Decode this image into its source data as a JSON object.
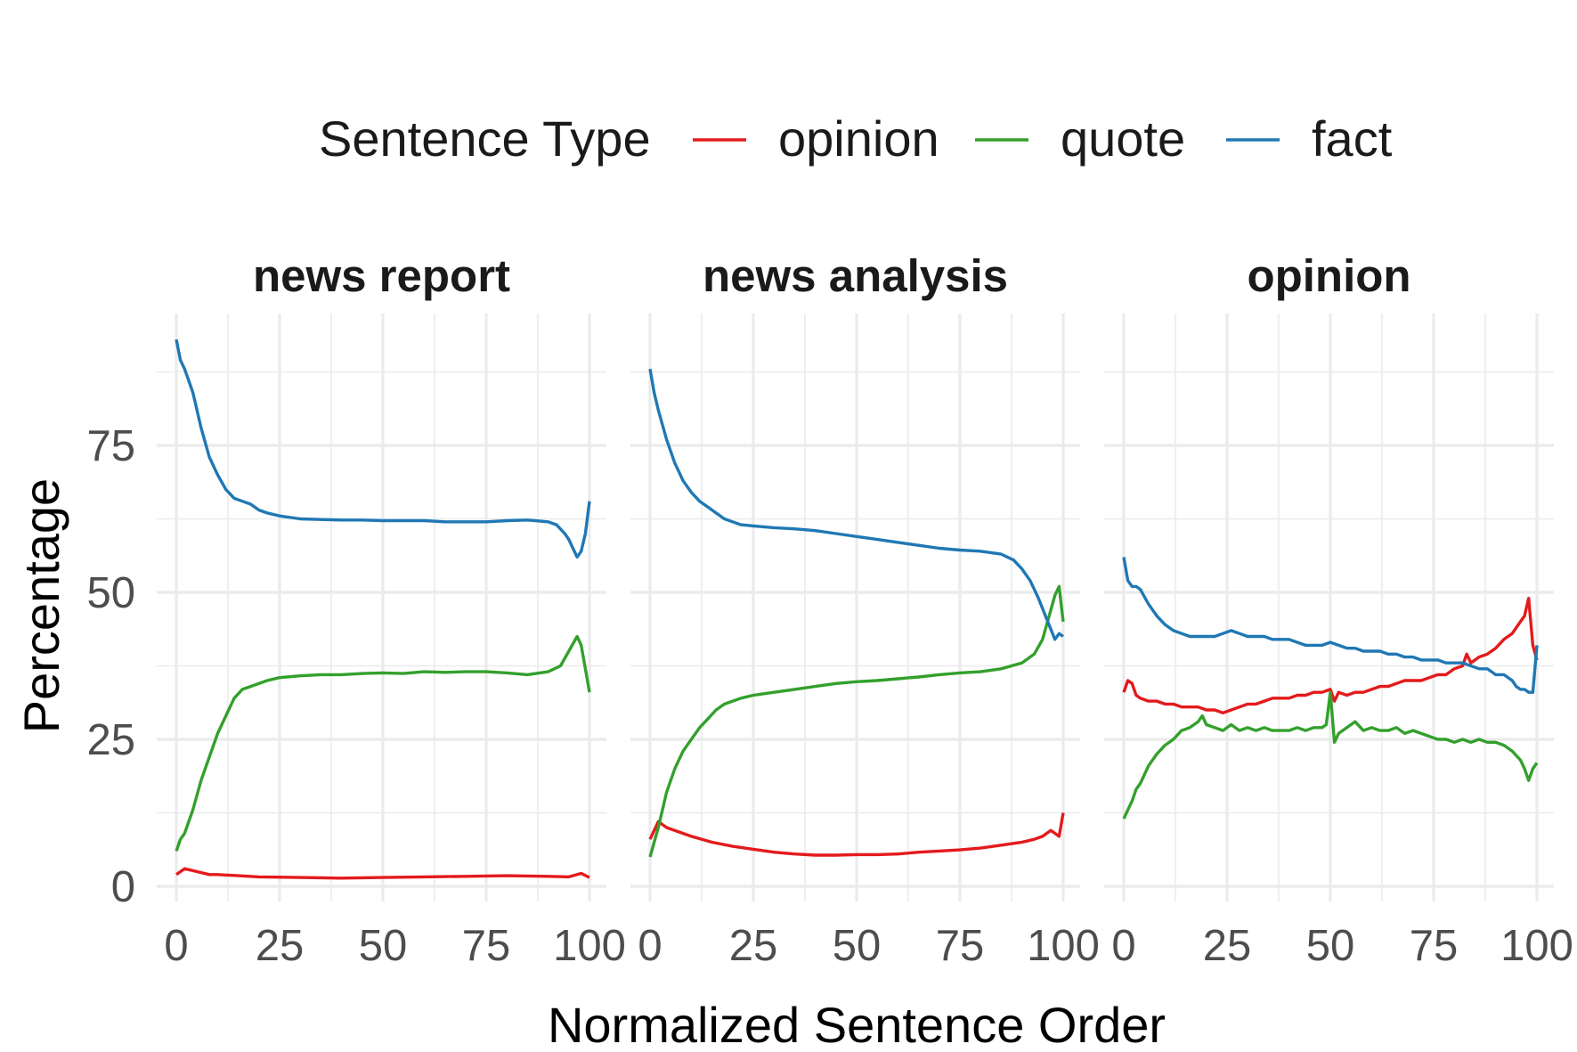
{
  "chart_data": {
    "type": "line",
    "facets": [
      "news report",
      "news analysis",
      "opinion"
    ],
    "xlabel": "Normalized Sentence Order",
    "ylabel": "Percentage",
    "xlim": [
      0,
      100
    ],
    "ylim": [
      0,
      95
    ],
    "x_ticks": [
      0,
      25,
      50,
      75,
      100
    ],
    "y_ticks": [
      0,
      25,
      50,
      75
    ],
    "grid": true,
    "legend": {
      "title": "Sentence Type",
      "position": "top",
      "entries": [
        {
          "name": "opinion",
          "color": "#E41A1C"
        },
        {
          "name": "quote",
          "color": "#33A02C"
        },
        {
          "name": "fact",
          "color": "#1F78B4"
        }
      ]
    },
    "panels": [
      {
        "facet": "news report",
        "series": [
          {
            "name": "opinion",
            "x": [
              0,
              2,
              5,
              8,
              10,
              15,
              20,
              30,
              40,
              50,
              60,
              70,
              80,
              90,
              95,
              98,
              100
            ],
            "y": [
              2,
              3,
              2.5,
              2,
              2,
              1.8,
              1.6,
              1.5,
              1.4,
              1.5,
              1.6,
              1.7,
              1.8,
              1.7,
              1.6,
              2.2,
              1.5
            ]
          },
          {
            "name": "quote",
            "x": [
              0,
              1,
              2,
              4,
              6,
              8,
              10,
              12,
              14,
              16,
              18,
              20,
              22,
              25,
              30,
              35,
              40,
              45,
              50,
              55,
              60,
              65,
              70,
              75,
              80,
              85,
              90,
              93,
              95,
              97,
              98,
              99,
              100
            ],
            "y": [
              6,
              8,
              9,
              13,
              18,
              22,
              26,
              29,
              32,
              33.5,
              34,
              34.5,
              35,
              35.5,
              35.8,
              36,
              36,
              36.2,
              36.3,
              36.2,
              36.5,
              36.4,
              36.5,
              36.5,
              36.3,
              36,
              36.5,
              37.5,
              40,
              42.5,
              41,
              37,
              33
            ]
          },
          {
            "name": "fact",
            "x": [
              0,
              1,
              2,
              4,
              6,
              8,
              10,
              12,
              14,
              16,
              18,
              20,
              22,
              25,
              30,
              35,
              40,
              45,
              50,
              55,
              60,
              65,
              70,
              75,
              80,
              85,
              90,
              92,
              94,
              95,
              96,
              97,
              98,
              99,
              100
            ],
            "y": [
              93,
              89.5,
              88,
              84,
              78,
              73,
              70,
              67.5,
              66,
              65.5,
              65,
              64,
              63.5,
              63,
              62.5,
              62.4,
              62.3,
              62.3,
              62.2,
              62.2,
              62.2,
              62,
              62,
              62,
              62.2,
              62.3,
              62,
              61.5,
              60,
              59,
              57.5,
              56,
              57,
              60,
              65.5
            ]
          }
        ]
      },
      {
        "facet": "news analysis",
        "series": [
          {
            "name": "opinion",
            "x": [
              0,
              2,
              4,
              6,
              10,
              15,
              20,
              25,
              30,
              35,
              40,
              45,
              50,
              55,
              60,
              65,
              70,
              75,
              80,
              85,
              90,
              93,
              95,
              97,
              99,
              100
            ],
            "y": [
              8,
              11,
              10,
              9.5,
              8.5,
              7.5,
              6.8,
              6.3,
              5.8,
              5.5,
              5.3,
              5.3,
              5.4,
              5.4,
              5.5,
              5.8,
              6,
              6.2,
              6.5,
              7,
              7.5,
              8,
              8.5,
              9.5,
              8.5,
              12.5
            ]
          },
          {
            "name": "quote",
            "x": [
              0,
              2,
              4,
              6,
              8,
              10,
              12,
              14,
              16,
              18,
              20,
              22,
              25,
              30,
              35,
              40,
              45,
              50,
              55,
              60,
              65,
              70,
              75,
              80,
              85,
              90,
              93,
              95,
              97,
              98,
              99,
              100
            ],
            "y": [
              5,
              10,
              16,
              20,
              23,
              25,
              27,
              28.5,
              30,
              31,
              31.5,
              32,
              32.5,
              33,
              33.5,
              34,
              34.5,
              34.8,
              35,
              35.3,
              35.6,
              36,
              36.3,
              36.5,
              37,
              38,
              39.5,
              42,
              47,
              49.5,
              51,
              45
            ]
          },
          {
            "name": "fact",
            "x": [
              0,
              1,
              2,
              4,
              6,
              8,
              10,
              12,
              14,
              16,
              18,
              20,
              22,
              25,
              30,
              35,
              40,
              45,
              50,
              55,
              60,
              65,
              70,
              75,
              80,
              85,
              88,
              90,
              92,
              94,
              96,
              98,
              99,
              100
            ],
            "y": [
              88,
              84,
              81,
              76,
              72,
              69,
              67,
              65.5,
              64.5,
              63.5,
              62.5,
              62,
              61.5,
              61.3,
              61,
              60.8,
              60.5,
              60,
              59.5,
              59,
              58.5,
              58,
              57.5,
              57.2,
              57,
              56.5,
              55.5,
              54,
              52,
              49,
              45.5,
              42,
              43,
              42.5
            ]
          }
        ]
      },
      {
        "facet": "opinion",
        "series": [
          {
            "name": "opinion",
            "x": [
              0,
              1,
              2,
              3,
              4,
              6,
              8,
              10,
              12,
              14,
              16,
              18,
              20,
              22,
              24,
              26,
              28,
              30,
              32,
              34,
              36,
              38,
              40,
              42,
              44,
              46,
              48,
              50,
              51,
              52,
              54,
              56,
              58,
              60,
              62,
              64,
              66,
              68,
              70,
              72,
              74,
              76,
              78,
              80,
              82,
              83,
              84,
              86,
              88,
              90,
              92,
              94,
              95,
              96,
              97,
              98,
              99,
              100
            ],
            "y": [
              33,
              35,
              34.5,
              32.5,
              32,
              31.5,
              31.5,
              31,
              31,
              30.5,
              30.5,
              30.5,
              30,
              30,
              29.5,
              30,
              30.5,
              31,
              31,
              31.5,
              32,
              32,
              32,
              32.5,
              32.5,
              33,
              33,
              33.5,
              31.5,
              33,
              32.5,
              33,
              33,
              33.5,
              34,
              34,
              34.5,
              35,
              35,
              35,
              35.5,
              36,
              36,
              37,
              37.5,
              39.5,
              38,
              39,
              39.5,
              40.5,
              42,
              43,
              44,
              45,
              46,
              49,
              41,
              38.5
            ]
          },
          {
            "name": "quote",
            "x": [
              0,
              1,
              2,
              3,
              4,
              5,
              6,
              8,
              10,
              12,
              14,
              16,
              18,
              19,
              20,
              22,
              24,
              26,
              28,
              30,
              32,
              34,
              36,
              38,
              40,
              42,
              44,
              46,
              48,
              49,
              50,
              51,
              52,
              54,
              56,
              58,
              60,
              62,
              64,
              66,
              68,
              70,
              72,
              74,
              76,
              78,
              80,
              82,
              84,
              86,
              88,
              90,
              92,
              94,
              96,
              97,
              98,
              99,
              100
            ],
            "y": [
              11.5,
              13,
              14.5,
              16.5,
              17.5,
              19,
              20.5,
              22.5,
              24,
              25,
              26.5,
              27,
              28,
              29,
              27.5,
              27,
              26.5,
              27.5,
              26.5,
              27,
              26.5,
              27,
              26.5,
              26.5,
              26.5,
              27,
              26.5,
              27,
              27,
              27.5,
              33,
              24.5,
              26,
              27,
              28,
              26.5,
              27,
              26.5,
              26.5,
              27,
              26,
              26.5,
              26,
              25.5,
              25,
              25,
              24.5,
              25,
              24.5,
              25,
              24.5,
              24.5,
              24,
              23,
              21.5,
              20,
              18,
              20,
              21
            ]
          },
          {
            "name": "fact",
            "x": [
              0,
              1,
              2,
              3,
              4,
              6,
              8,
              10,
              12,
              14,
              16,
              18,
              20,
              22,
              24,
              26,
              28,
              30,
              32,
              34,
              36,
              38,
              40,
              42,
              44,
              46,
              48,
              50,
              52,
              54,
              56,
              58,
              60,
              62,
              64,
              66,
              68,
              70,
              72,
              74,
              76,
              78,
              80,
              82,
              84,
              86,
              88,
              90,
              92,
              94,
              95,
              96,
              97,
              98,
              99,
              100
            ],
            "y": [
              56,
              52,
              51,
              51,
              50.5,
              48,
              46,
              44.5,
              43.5,
              43,
              42.5,
              42.5,
              42.5,
              42.5,
              43,
              43.5,
              43,
              42.5,
              42.5,
              42.5,
              42,
              42,
              42,
              41.5,
              41,
              41,
              41,
              41.5,
              41,
              40.5,
              40.5,
              40,
              40,
              40,
              39.5,
              39.5,
              39,
              39,
              38.5,
              38.5,
              38.5,
              38,
              38,
              38,
              37.5,
              37,
              37,
              36,
              36,
              35,
              34,
              33.5,
              33.5,
              33,
              33,
              41
            ]
          }
        ]
      }
    ]
  }
}
